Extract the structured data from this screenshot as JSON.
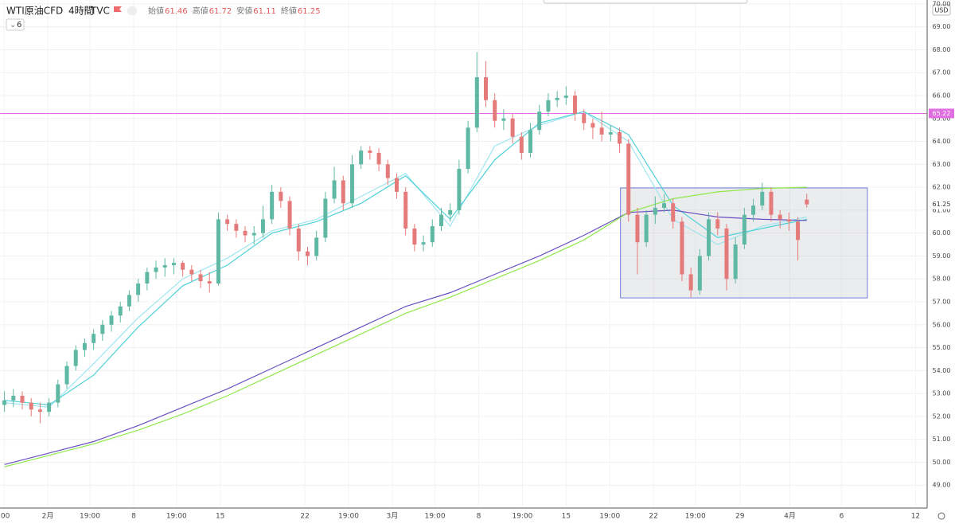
{
  "header": {
    "symbol": "WTI原油CFD",
    "interval": "4時間",
    "source": "TVC",
    "ohlc": [
      {
        "label": "始値",
        "value": 61.46
      },
      {
        "label": "高値",
        "value": 61.72
      },
      {
        "label": "安値",
        "value": 61.11
      },
      {
        "label": "終値",
        "value": 61.25
      }
    ],
    "indicator_count": 6,
    "currency": "USD"
  },
  "chart_data": {
    "type": "candlestick",
    "up_color": "#5fb8a3",
    "down_color": "#e57a7a",
    "candles": [
      [
        52.5,
        53.1,
        52.2,
        52.7
      ],
      [
        52.7,
        53.2,
        52.4,
        52.9
      ],
      [
        52.9,
        53.1,
        52.3,
        52.6
      ],
      [
        52.6,
        52.8,
        52.0,
        52.3
      ],
      [
        52.3,
        52.6,
        51.7,
        52.2
      ],
      [
        52.2,
        52.8,
        52.0,
        52.6
      ],
      [
        52.6,
        53.6,
        52.4,
        53.4
      ],
      [
        53.4,
        54.4,
        53.2,
        54.2
      ],
      [
        54.2,
        55.1,
        54.0,
        54.9
      ],
      [
        54.9,
        55.4,
        54.6,
        55.2
      ],
      [
        55.2,
        55.8,
        54.9,
        55.6
      ],
      [
        55.6,
        56.2,
        55.3,
        56.0
      ],
      [
        56.0,
        56.6,
        55.7,
        56.4
      ],
      [
        56.4,
        57.0,
        56.1,
        56.8
      ],
      [
        56.8,
        57.5,
        56.6,
        57.3
      ],
      [
        57.3,
        58.0,
        57.0,
        57.8
      ],
      [
        57.8,
        58.5,
        57.5,
        58.3
      ],
      [
        58.3,
        58.8,
        58.0,
        58.5
      ],
      [
        58.5,
        58.9,
        58.1,
        58.6
      ],
      [
        58.6,
        58.9,
        58.2,
        58.7
      ],
      [
        58.7,
        58.8,
        58.1,
        58.4
      ],
      [
        58.4,
        58.6,
        57.9,
        58.2
      ],
      [
        58.2,
        58.4,
        57.6,
        57.9
      ],
      [
        57.9,
        58.3,
        57.4,
        57.8
      ],
      [
        57.8,
        60.9,
        57.7,
        60.6
      ],
      [
        60.6,
        60.8,
        60.1,
        60.4
      ],
      [
        60.4,
        60.6,
        59.8,
        60.1
      ],
      [
        60.1,
        60.3,
        59.6,
        59.9
      ],
      [
        59.9,
        60.3,
        59.5,
        60.0
      ],
      [
        60.0,
        61.2,
        59.8,
        60.6
      ],
      [
        60.6,
        62.1,
        60.4,
        61.8
      ],
      [
        61.8,
        62.0,
        61.1,
        61.4
      ],
      [
        61.4,
        61.6,
        59.9,
        60.2
      ],
      [
        60.2,
        60.4,
        58.8,
        59.2
      ],
      [
        59.2,
        59.4,
        58.6,
        59.0
      ],
      [
        59.0,
        60.1,
        58.8,
        59.8
      ],
      [
        59.8,
        61.8,
        59.6,
        61.5
      ],
      [
        61.5,
        62.9,
        61.3,
        62.3
      ],
      [
        62.3,
        62.5,
        61.0,
        61.3
      ],
      [
        61.3,
        63.4,
        61.1,
        63.0
      ],
      [
        63.0,
        63.8,
        62.8,
        63.6
      ],
      [
        63.6,
        63.8,
        63.2,
        63.5
      ],
      [
        63.5,
        63.7,
        62.7,
        63.0
      ],
      [
        63.0,
        63.2,
        62.1,
        62.4
      ],
      [
        62.4,
        62.6,
        61.5,
        61.8
      ],
      [
        61.8,
        62.0,
        59.9,
        60.2
      ],
      [
        60.2,
        60.4,
        59.2,
        59.5
      ],
      [
        59.5,
        59.9,
        59.2,
        59.6
      ],
      [
        59.6,
        60.6,
        59.4,
        60.3
      ],
      [
        60.3,
        61.1,
        60.1,
        60.8
      ],
      [
        60.8,
        61.3,
        60.5,
        61.0
      ],
      [
        61.0,
        63.2,
        60.8,
        62.8
      ],
      [
        62.8,
        64.9,
        62.6,
        64.6
      ],
      [
        64.6,
        67.9,
        64.4,
        66.8
      ],
      [
        66.8,
        67.5,
        65.5,
        65.8
      ],
      [
        65.8,
        66.1,
        64.6,
        64.9
      ],
      [
        64.9,
        65.4,
        64.5,
        65.0
      ],
      [
        65.0,
        65.2,
        63.9,
        64.2
      ],
      [
        64.2,
        64.4,
        63.2,
        63.5
      ],
      [
        63.5,
        64.8,
        63.3,
        64.5
      ],
      [
        64.5,
        65.6,
        64.3,
        65.3
      ],
      [
        65.3,
        66.1,
        65.1,
        65.8
      ],
      [
        65.8,
        66.2,
        65.5,
        65.9
      ],
      [
        65.9,
        66.4,
        65.6,
        66.0
      ],
      [
        66.0,
        66.2,
        64.9,
        65.2
      ],
      [
        65.2,
        65.4,
        64.5,
        64.8
      ],
      [
        64.8,
        65.0,
        64.1,
        64.6
      ],
      [
        64.6,
        65.3,
        64.0,
        64.3
      ],
      [
        64.3,
        64.7,
        64.0,
        64.4
      ],
      [
        64.4,
        64.6,
        63.5,
        63.9
      ],
      [
        63.9,
        64.1,
        60.5,
        60.8
      ],
      [
        60.8,
        61.1,
        58.2,
        59.6
      ],
      [
        59.6,
        61.0,
        59.4,
        60.8
      ],
      [
        60.8,
        61.6,
        60.4,
        61.1
      ],
      [
        61.1,
        61.7,
        60.9,
        61.3
      ],
      [
        61.3,
        61.5,
        60.2,
        60.5
      ],
      [
        60.5,
        60.7,
        57.9,
        58.2
      ],
      [
        58.2,
        58.5,
        57.2,
        57.5
      ],
      [
        57.5,
        59.3,
        57.3,
        59.0
      ],
      [
        59.0,
        60.9,
        58.8,
        60.6
      ],
      [
        60.6,
        60.9,
        59.9,
        60.2
      ],
      [
        60.2,
        60.4,
        57.5,
        58.0
      ],
      [
        58.0,
        59.8,
        57.8,
        59.5
      ],
      [
        59.5,
        61.1,
        59.3,
        60.8
      ],
      [
        60.8,
        61.5,
        60.5,
        61.2
      ],
      [
        61.2,
        62.2,
        61.0,
        61.8
      ],
      [
        61.8,
        62.0,
        60.5,
        60.8
      ],
      [
        60.8,
        61.0,
        60.2,
        60.6
      ],
      [
        60.6,
        60.9,
        60.1,
        60.5
      ],
      [
        60.5,
        60.7,
        58.8,
        59.7
      ],
      [
        61.46,
        61.72,
        61.11,
        61.25
      ]
    ],
    "lines": [
      {
        "color": "#9fe6f0",
        "x": [
          0.5,
          5.5,
          10.5,
          15.5,
          20.5,
          25.5,
          30.5,
          35.5,
          40.5,
          45.5,
          50.5,
          55.5,
          60.5,
          65.5,
          70.5,
          75.5,
          80.5,
          85.5,
          90.5
        ],
        "values": [
          52.6,
          52.4,
          54.3,
          56.3,
          58.0,
          58.9,
          60.1,
          60.6,
          61.6,
          62.6,
          60.3,
          63.8,
          64.7,
          65.3,
          64.0,
          60.6,
          59.5,
          60.3,
          60.7
        ]
      },
      {
        "color": "#4fd0d8",
        "x": [
          0.5,
          5.5,
          10.5,
          15.5,
          20.5,
          25.5,
          30.5,
          35.5,
          40.5,
          45.5,
          50.5,
          55.5,
          60.5,
          65.5,
          70.5,
          75.5,
          80.5,
          85.5,
          90.5
        ],
        "values": [
          52.7,
          52.5,
          53.8,
          55.9,
          57.7,
          58.6,
          60.0,
          60.5,
          61.3,
          62.5,
          60.6,
          63.2,
          64.8,
          65.3,
          64.3,
          61.2,
          59.8,
          60.2,
          60.6
        ]
      },
      {
        "color": "#6a4fc2",
        "x": [
          0.5,
          5.5,
          10.5,
          15.5,
          20.5,
          25.5,
          30.5,
          35.5,
          40.5,
          45.5,
          50.5,
          55.5,
          60.5,
          65.5,
          70.5,
          75.5,
          80.5,
          85.5,
          90.5
        ],
        "values": [
          49.9,
          50.4,
          50.9,
          51.6,
          52.4,
          53.2,
          54.1,
          55.0,
          55.9,
          56.8,
          57.4,
          58.2,
          59.0,
          59.9,
          60.9,
          61.0,
          60.7,
          60.6,
          60.55
        ]
      },
      {
        "color": "#8ee84a",
        "x": [
          0.5,
          5.5,
          10.5,
          15.5,
          20.5,
          25.5,
          30.5,
          35.5,
          40.5,
          45.5,
          50.5,
          55.5,
          60.5,
          65.5,
          70.5,
          75.5,
          80.5,
          85.5,
          90.5
        ],
        "values": [
          49.8,
          50.3,
          50.8,
          51.4,
          52.1,
          52.9,
          53.8,
          54.7,
          55.6,
          56.5,
          57.2,
          58.0,
          58.8,
          59.7,
          60.9,
          61.5,
          61.8,
          61.95,
          62.0
        ]
      }
    ],
    "hline": {
      "value": 65.22,
      "color": "#e06ee0"
    },
    "last_price": 61.25,
    "box": {
      "x": [
        69.6,
        97.3
      ],
      "y": [
        57.17,
        61.97
      ]
    },
    "xlim": [
      0,
      104
    ],
    "ylim": [
      48,
      70.17
    ],
    "xticks": [
      {
        "value": 0.45,
        "label": ":00"
      },
      {
        "value": 5.36,
        "label": "2月"
      },
      {
        "value": 10.09,
        "label": "19:00"
      },
      {
        "value": 15.0,
        "label": "8"
      },
      {
        "value": 19.8,
        "label": "19:00"
      },
      {
        "value": 24.7,
        "label": "15"
      },
      {
        "value": 34.2,
        "label": "22"
      },
      {
        "value": 39.1,
        "label": "19:00"
      },
      {
        "value": 44.0,
        "label": "3月"
      },
      {
        "value": 48.8,
        "label": "19:00"
      },
      {
        "value": 53.7,
        "label": "8"
      },
      {
        "value": 58.6,
        "label": "19:00"
      },
      {
        "value": 63.5,
        "label": "15"
      },
      {
        "value": 68.4,
        "label": "19:00"
      },
      {
        "value": 73.3,
        "label": "22"
      },
      {
        "value": 78.0,
        "label": "19:00"
      },
      {
        "value": 83.0,
        "label": "29"
      },
      {
        "value": 88.6,
        "label": "4月"
      },
      {
        "value": 94.4,
        "label": "6"
      },
      {
        "value": 102.7,
        "label": "12"
      }
    ],
    "yticks": [
      {
        "value": 49,
        "label": "49.00"
      },
      {
        "value": 50,
        "label": "50.00"
      },
      {
        "value": 51,
        "label": "51.00"
      },
      {
        "value": 52,
        "label": "52.00"
      },
      {
        "value": 53,
        "label": "53.00"
      },
      {
        "value": 54,
        "label": "54.00"
      },
      {
        "value": 55,
        "label": "55.00"
      },
      {
        "value": 56,
        "label": "56.00"
      },
      {
        "value": 57,
        "label": "57.00"
      },
      {
        "value": 58,
        "label": "58.00"
      },
      {
        "value": 59,
        "label": "59.00"
      },
      {
        "value": 60,
        "label": "60.00"
      },
      {
        "value": 61,
        "label": "61.00"
      },
      {
        "value": 62,
        "label": "62.00"
      },
      {
        "value": 63,
        "label": "63.00"
      },
      {
        "value": 64,
        "label": "64.00"
      },
      {
        "value": 65,
        "label": "65.00"
      },
      {
        "value": 66,
        "label": "66.00"
      },
      {
        "value": 67,
        "label": "67.00"
      },
      {
        "value": 68,
        "label": "68.00"
      },
      {
        "value": 69,
        "label": "69.00"
      },
      {
        "value": 70,
        "label": "70.00"
      }
    ]
  }
}
